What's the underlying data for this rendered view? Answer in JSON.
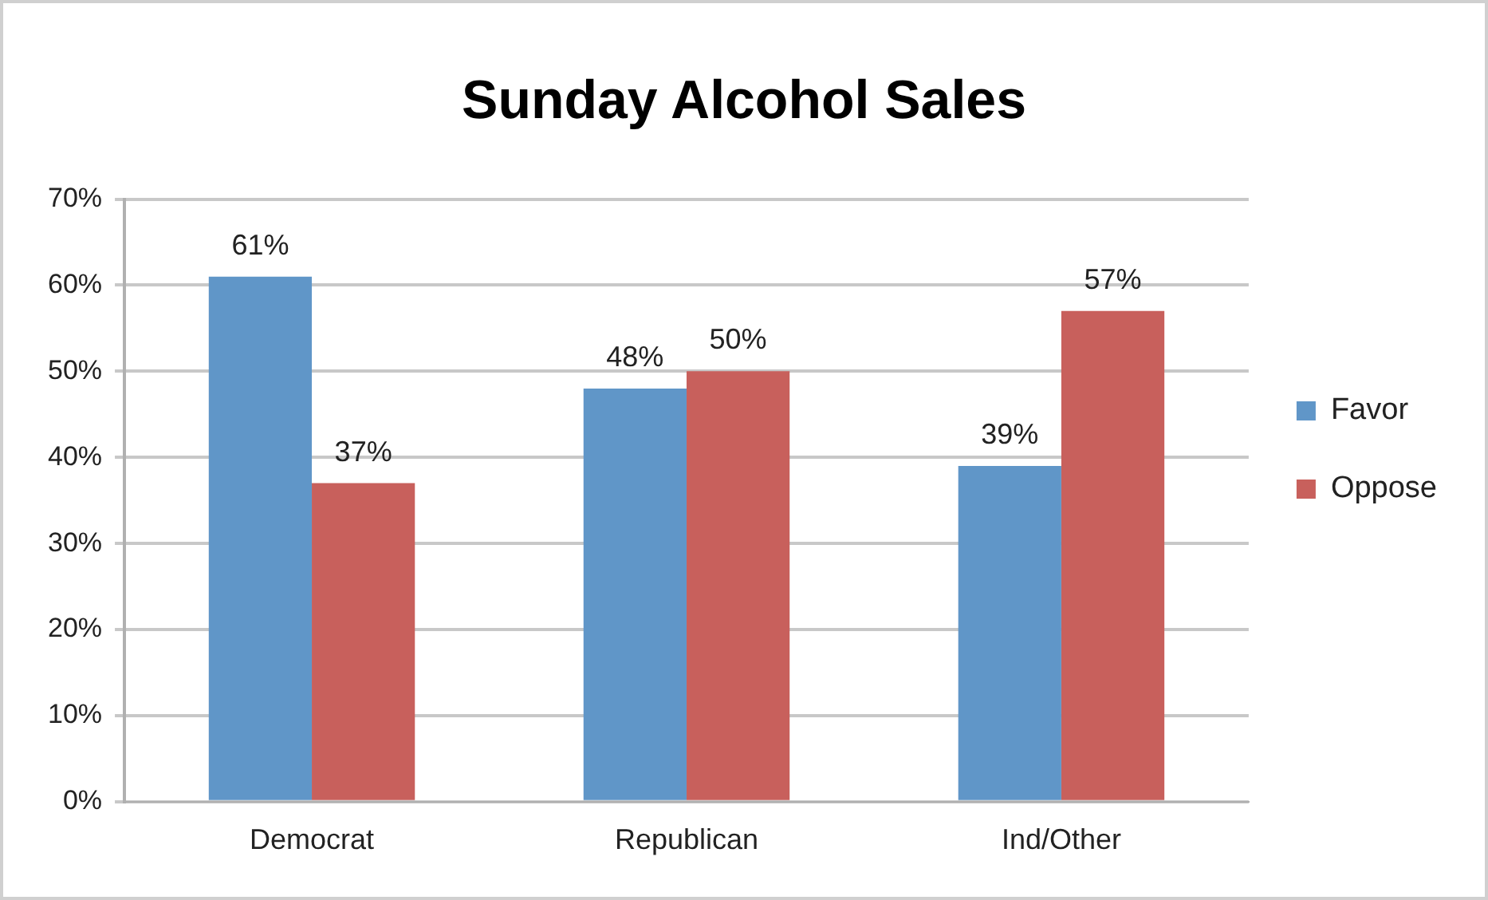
{
  "chart_data": {
    "type": "bar",
    "title": "Sunday Alcohol Sales",
    "categories": [
      "Democrat",
      "Republican",
      "Ind/Other"
    ],
    "series": [
      {
        "name": "Favor",
        "color": "#6096c8",
        "values": [
          61,
          48,
          39
        ],
        "value_labels": [
          "61%",
          "48%",
          "39%"
        ]
      },
      {
        "name": "Oppose",
        "color": "#c8605c",
        "values": [
          37,
          50,
          57
        ],
        "value_labels": [
          "37%",
          "50%",
          "57%"
        ]
      }
    ],
    "ylim": [
      0,
      70
    ],
    "yticks": [
      {
        "value": 0,
        "label": "0%"
      },
      {
        "value": 10,
        "label": "10%"
      },
      {
        "value": 20,
        "label": "20%"
      },
      {
        "value": 30,
        "label": "30%"
      },
      {
        "value": 40,
        "label": "40%"
      },
      {
        "value": 50,
        "label": "50%"
      },
      {
        "value": 60,
        "label": "60%"
      },
      {
        "value": 70,
        "label": "70%"
      }
    ],
    "grid": "y",
    "legend": "right"
  }
}
